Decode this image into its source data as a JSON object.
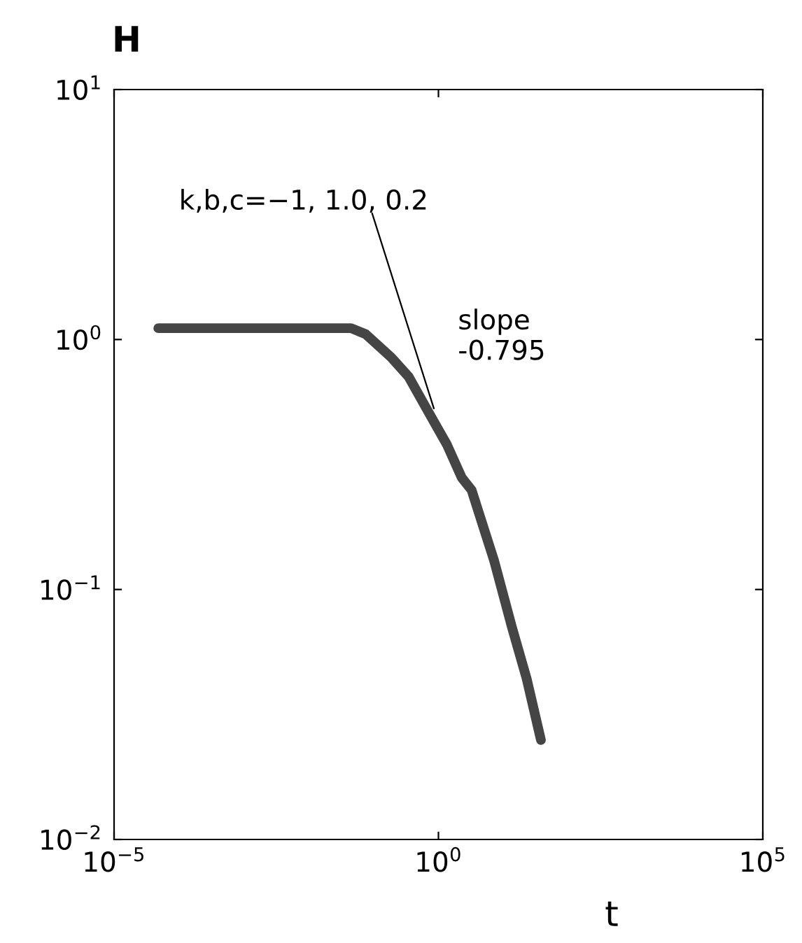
{
  "chart_data": {
    "type": "line",
    "title": "H",
    "xlabel": "t",
    "log": "xy",
    "series": [
      {
        "color": "#454545",
        "x": [
          4.8e-05,
          0.045,
          0.076,
          0.186,
          0.347,
          0.71,
          1.35,
          2.29,
          3.24,
          7.24,
          13.5,
          22.9,
          38
        ],
        "values": [
          1.11,
          1.11,
          1.05,
          0.85,
          0.71,
          0.51,
          0.38,
          0.28,
          0.25,
          0.13,
          0.071,
          0.044,
          0.025
        ]
      },
      {
        "color": "#000000",
        "x": [
          0.095,
          0.85
        ],
        "values": [
          3.2,
          0.53
        ]
      }
    ],
    "xlim": [
      1e-05,
      100000
    ],
    "ylim": [
      0.01,
      10
    ],
    "xticks": [
      {
        "value": 1e-05,
        "label": "10$^{−5}$"
      },
      {
        "value": 1,
        "label": "10$^{0}$"
      },
      {
        "value": 100000,
        "label": "10$^{5}$"
      }
    ],
    "yticks": [
      {
        "value": 0.01,
        "label": "10$^{−2}$"
      },
      {
        "value": 0.1,
        "label": "10$^{−1}$"
      },
      {
        "value": 1,
        "label": "10$^{0}$"
      },
      {
        "value": 10,
        "label": "10$^{1}$"
      }
    ],
    "grid": false,
    "annotations": [
      "k,b,c=−1, 1.0, 0.2",
      "slope\n-0.795"
    ]
  }
}
